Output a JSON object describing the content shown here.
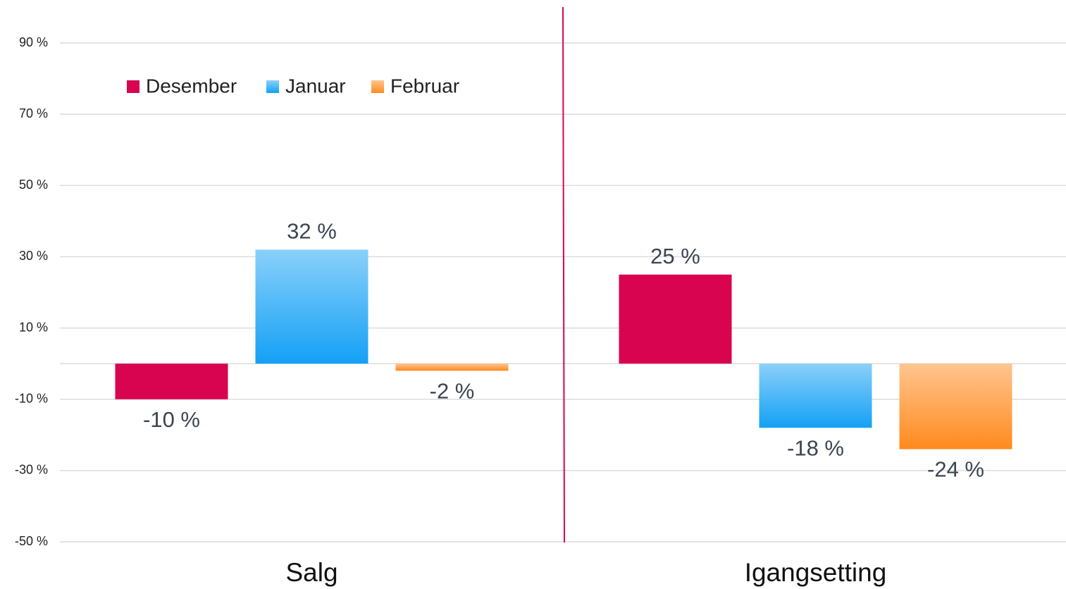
{
  "chart_data": {
    "type": "bar",
    "categories": [
      "Salg",
      "Igangsetting"
    ],
    "series": [
      {
        "name": "Desember",
        "color": "#d9044f",
        "gradient": false,
        "values": [
          -10,
          25
        ],
        "value_labels": [
          "-10 %",
          "25 %"
        ]
      },
      {
        "name": "Januar",
        "color": "#14a0f5",
        "gradient": true,
        "values": [
          32,
          -18
        ],
        "value_labels": [
          "32 %",
          "-18 %"
        ]
      },
      {
        "name": "Februar",
        "color": "#ff8a1e",
        "gradient": true,
        "values": [
          -2,
          -24
        ],
        "value_labels": [
          "-2 %",
          "-24 %"
        ]
      }
    ],
    "ylim": [
      -50,
      90
    ],
    "yticks": [
      {
        "value": -50,
        "label": "-50 %"
      },
      {
        "value": -30,
        "label": "-30 %"
      },
      {
        "value": -10,
        "label": "-10 %"
      },
      {
        "value": 10,
        "label": "10 %"
      },
      {
        "value": 30,
        "label": "30 %"
      },
      {
        "value": 50,
        "label": "50 %"
      },
      {
        "value": 70,
        "label": "70 %"
      },
      {
        "value": 90,
        "label": "90 %"
      }
    ],
    "grid": true,
    "legend": "top-left"
  }
}
